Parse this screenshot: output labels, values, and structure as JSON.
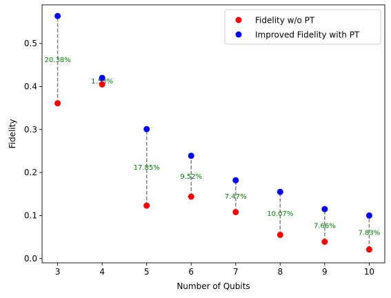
{
  "chart_data": {
    "type": "scatter",
    "xlabel": "Number of Qubits",
    "ylabel": "Fidelity",
    "xlim": [
      2.65,
      10.35
    ],
    "ylim": [
      -0.01,
      0.59
    ],
    "xticks": [
      3,
      4,
      5,
      6,
      7,
      8,
      9,
      10
    ],
    "yticks": [
      0.0,
      0.1,
      0.2,
      0.3,
      0.4,
      0.5
    ],
    "grid": false,
    "legend_position": "top-right",
    "x": [
      3,
      4,
      5,
      6,
      7,
      8,
      9,
      10
    ],
    "series": [
      {
        "name": "Fidelity w/o PT",
        "color": "#ff0000",
        "values": [
          0.361,
          0.405,
          0.123,
          0.144,
          0.108,
          0.055,
          0.039,
          0.021
        ]
      },
      {
        "name": "Improved Fidelity with PT",
        "color": "#0000ff",
        "values": [
          0.564,
          0.42,
          0.301,
          0.239,
          0.182,
          0.155,
          0.115,
          0.1
        ]
      }
    ],
    "connector_color": "#808080",
    "annotations": [
      "20.38%",
      "1.53%",
      "17.85%",
      "9.52%",
      "7.47%",
      "10.07%",
      "7.66%",
      "7.83%"
    ],
    "annotation_color": "#008000"
  }
}
